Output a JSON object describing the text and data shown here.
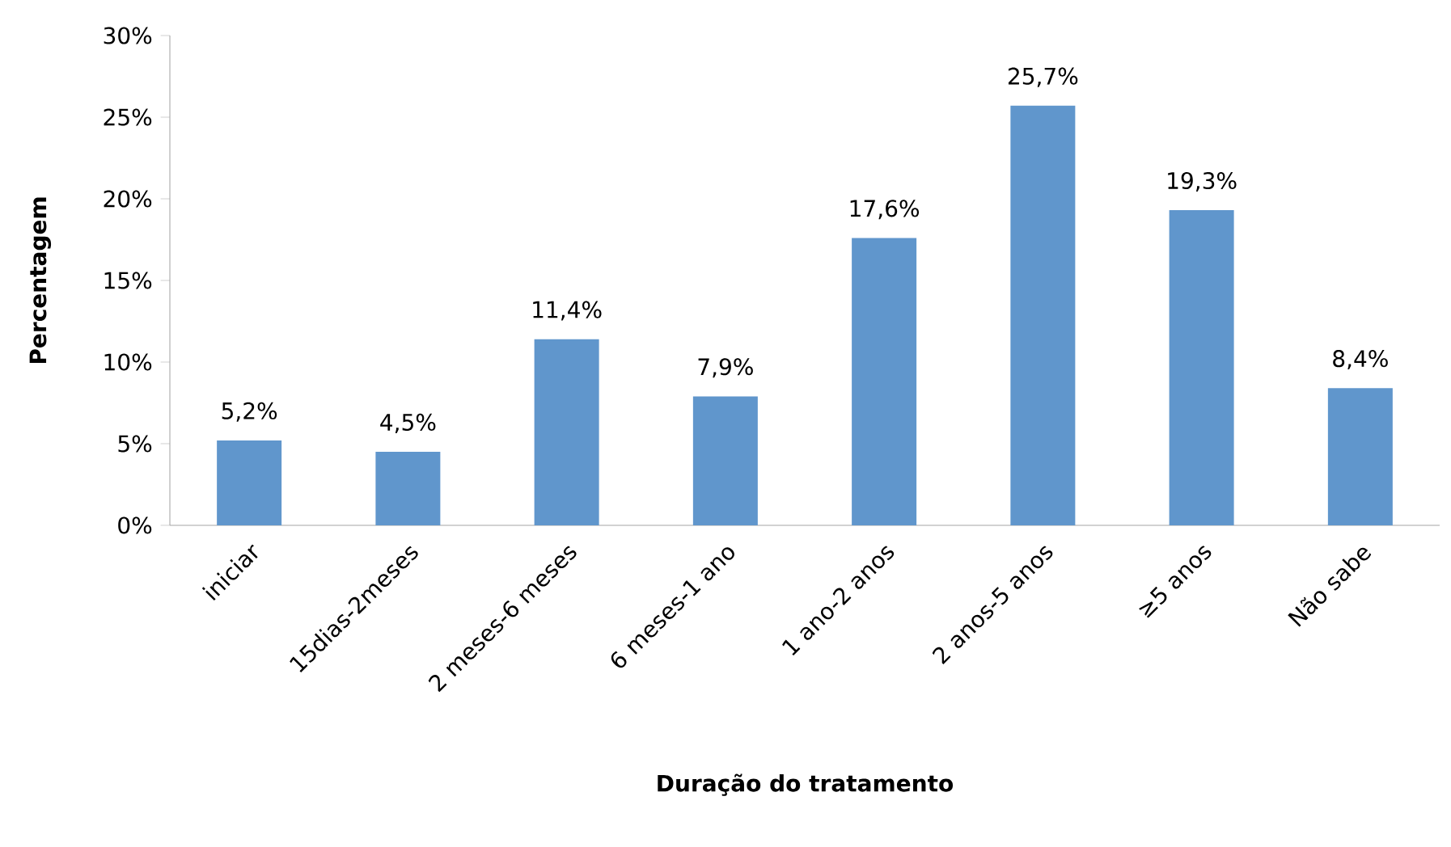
{
  "chart_data": {
    "type": "bar",
    "xlabel": "Duração do tratamento",
    "ylabel": "Percentagem",
    "categories": [
      "iniciar",
      "15dias-2meses",
      "2 meses-6 meses",
      "6 meses-1 ano",
      "1 ano-2 anos",
      "2 anos-5 anos",
      "≥5 anos",
      "Não sabe"
    ],
    "values": [
      5.2,
      4.5,
      11.4,
      7.9,
      17.6,
      25.7,
      19.3,
      8.4
    ],
    "value_labels": [
      "5,2%",
      "4,5%",
      "11,4%",
      "7,9%",
      "17,6%",
      "25,7%",
      "19,3%",
      "8,4%"
    ],
    "color": "#6096cc",
    "ylim": [
      0,
      30
    ],
    "yticks": [
      {
        "value": 0,
        "label": "0%"
      },
      {
        "value": 5,
        "label": "5%"
      },
      {
        "value": 10,
        "label": "10%"
      },
      {
        "value": 15,
        "label": "15%"
      },
      {
        "value": 20,
        "label": "20%"
      },
      {
        "value": 25,
        "label": "25%"
      },
      {
        "value": 30,
        "label": "30%"
      }
    ],
    "grid": false
  }
}
